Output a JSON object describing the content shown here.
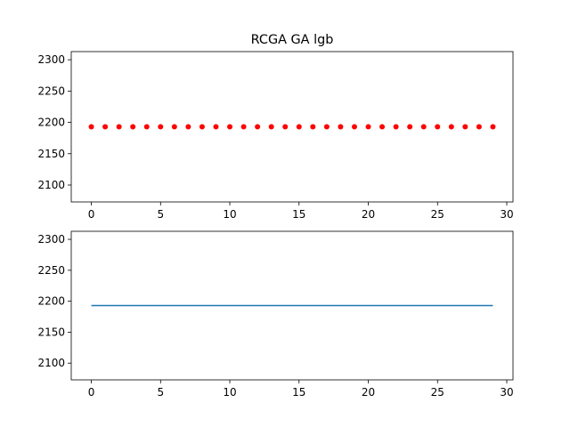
{
  "chart_data": [
    {
      "type": "scatter",
      "title": "RCGA GA lgb",
      "xlim": [
        -1.45,
        30.45
      ],
      "ylim": [
        2073,
        2313
      ],
      "x_ticks": [
        0,
        5,
        10,
        15,
        20,
        25,
        30
      ],
      "y_ticks": [
        2100,
        2150,
        2200,
        2250,
        2300
      ],
      "grid": false,
      "marker_color": "#ff0000",
      "series": [
        {
          "x": [
            0,
            1,
            2,
            3,
            4,
            5,
            6,
            7,
            8,
            9,
            10,
            11,
            12,
            13,
            14,
            15,
            16,
            17,
            18,
            19,
            20,
            21,
            22,
            23,
            24,
            25,
            26,
            27,
            28,
            29
          ],
          "y": [
            2193,
            2193,
            2193,
            2193,
            2193,
            2193,
            2193,
            2193,
            2193,
            2193,
            2193,
            2193,
            2193,
            2193,
            2193,
            2193,
            2193,
            2193,
            2193,
            2193,
            2193,
            2193,
            2193,
            2193,
            2193,
            2193,
            2193,
            2193,
            2193,
            2193
          ]
        }
      ]
    },
    {
      "type": "line",
      "title": "",
      "xlim": [
        -1.45,
        30.45
      ],
      "ylim": [
        2073,
        2313
      ],
      "x_ticks": [
        0,
        5,
        10,
        15,
        20,
        25,
        30
      ],
      "y_ticks": [
        2100,
        2150,
        2200,
        2250,
        2300
      ],
      "grid": false,
      "line_color": "#1f77b4",
      "series": [
        {
          "x": [
            0,
            1,
            2,
            3,
            4,
            5,
            6,
            7,
            8,
            9,
            10,
            11,
            12,
            13,
            14,
            15,
            16,
            17,
            18,
            19,
            20,
            21,
            22,
            23,
            24,
            25,
            26,
            27,
            28,
            29
          ],
          "y": [
            2193,
            2193,
            2193,
            2193,
            2193,
            2193,
            2193,
            2193,
            2193,
            2193,
            2193,
            2193,
            2193,
            2193,
            2193,
            2193,
            2193,
            2193,
            2193,
            2193,
            2193,
            2193,
            2193,
            2193,
            2193,
            2193,
            2193,
            2193,
            2193,
            2193
          ]
        }
      ]
    }
  ]
}
